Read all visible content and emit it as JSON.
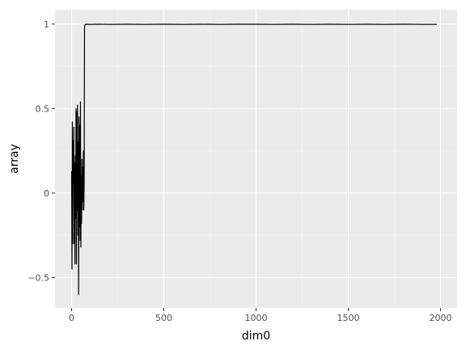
{
  "chart_data": {
    "type": "line",
    "title": "",
    "xlabel": "dim0",
    "ylabel": "array",
    "xlim": [
      -90,
      2090
    ],
    "ylim": [
      -0.68,
      1.085
    ],
    "x_ticks": [
      0,
      500,
      1000,
      1500,
      2000
    ],
    "x_tick_labels": [
      "0",
      "500",
      "1000",
      "1500",
      "2000"
    ],
    "y_ticks": [
      -0.5,
      0,
      0.5,
      1
    ],
    "y_tick_labels": [
      "−0.5",
      "0",
      "0.5",
      "1"
    ],
    "grid": true,
    "legend": "none",
    "background_color": "#ebebeb",
    "grid_major_color": "#ffffff",
    "grid_minor_color": "#f5f5f5",
    "line_color": "#000000",
    "series": [
      {
        "x": [
          0,
          2,
          4,
          6,
          8,
          10,
          12,
          14,
          16,
          18,
          20,
          22,
          24,
          26,
          28,
          30,
          32,
          34,
          36,
          38,
          40,
          42,
          44,
          46,
          48,
          50,
          52,
          54,
          56,
          58,
          60,
          62,
          64,
          66,
          68,
          70,
          72,
          74,
          76,
          78,
          80,
          85,
          100,
          150,
          200,
          300,
          400,
          500,
          600,
          700,
          800,
          900,
          1000,
          1100,
          1200,
          1300,
          1400,
          1500,
          1600,
          1700,
          1800,
          1900,
          1980
        ],
        "y": [
          0.13,
          -0.45,
          0.42,
          -0.3,
          0.31,
          0.05,
          0.39,
          -0.3,
          0.18,
          -0.42,
          0.22,
          -0.15,
          0.5,
          -0.42,
          0.48,
          -0.1,
          0.52,
          -0.25,
          0.3,
          -0.6,
          0.45,
          -0.2,
          0.4,
          -0.28,
          0.54,
          -0.32,
          0.1,
          -0.18,
          0.2,
          -0.1,
          0.15,
          -0.05,
          0.25,
          -0.1,
          0.05,
          0.98,
          0.995,
          0.997,
          0.998,
          0.999,
          0.998,
          0.999,
          0.998,
          0.999,
          0.998,
          0.999,
          0.998,
          0.999,
          0.998,
          0.999,
          0.998,
          0.999,
          0.999,
          0.998,
          0.999,
          0.998,
          0.999,
          0.998,
          0.999,
          0.998,
          0.999,
          0.998,
          0.998
        ]
      }
    ]
  }
}
